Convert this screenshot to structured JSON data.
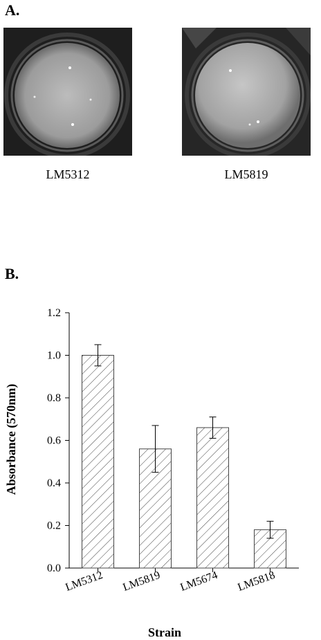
{
  "panel_a": {
    "label": "A.",
    "images": [
      {
        "caption": "LM5312"
      },
      {
        "caption": "LM5819"
      }
    ]
  },
  "panel_b": {
    "label": "B."
  },
  "chart_data": {
    "type": "bar",
    "categories": [
      "LM5312",
      "LM5819",
      "LM5674",
      "LM5818"
    ],
    "values": [
      1.0,
      0.56,
      0.66,
      0.18
    ],
    "errors": [
      0.05,
      0.11,
      0.05,
      0.04
    ],
    "xlabel": "Strain",
    "ylabel": "Absorbance (570nm)",
    "ylim": [
      0,
      1.2
    ],
    "yticks": [
      0.0,
      0.2,
      0.4,
      0.6,
      0.8,
      1.0,
      1.2
    ],
    "ytick_labels": [
      "0.0",
      "0.2",
      "0.4",
      "0.6",
      "0.8",
      "1.0",
      "1.2"
    ],
    "bar_fill": "hatched",
    "grid": false
  }
}
